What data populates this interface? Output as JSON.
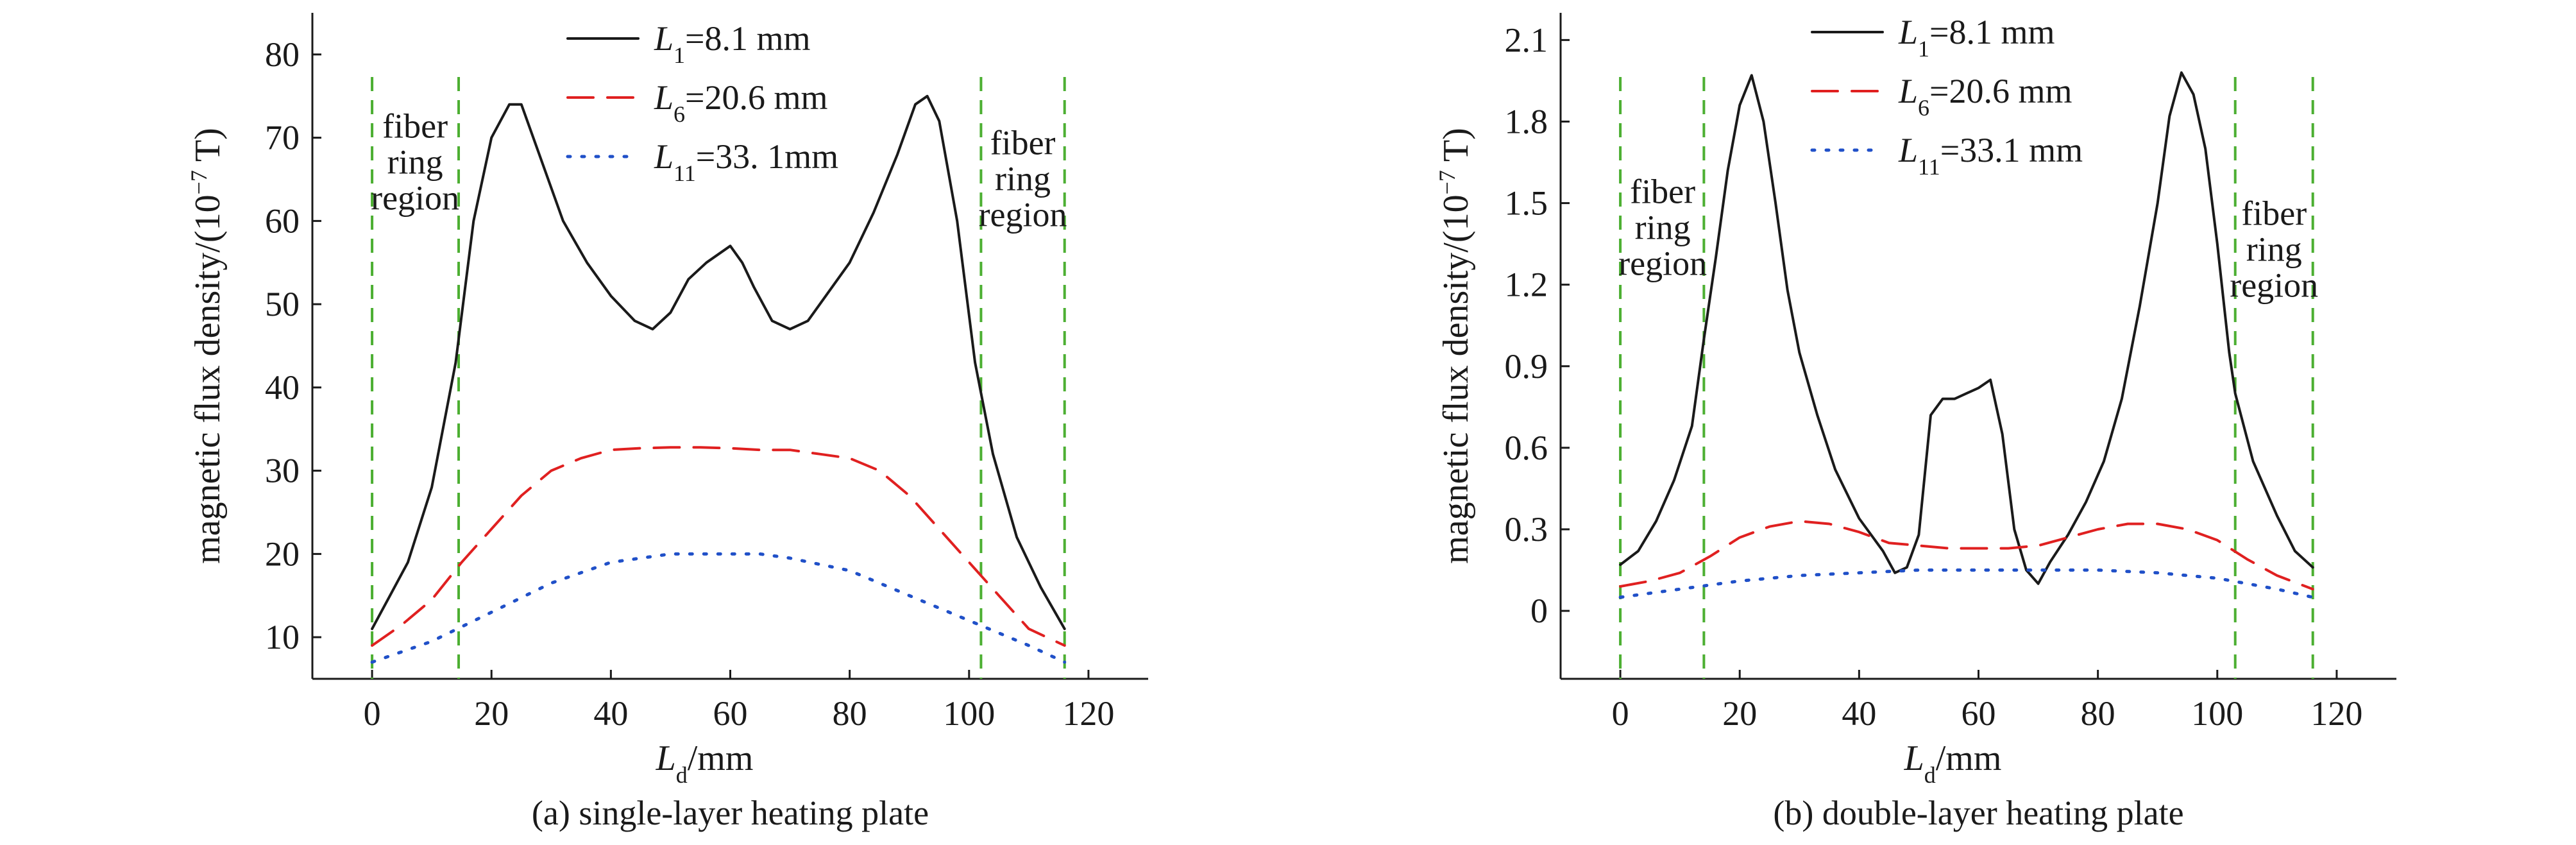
{
  "chart_data": [
    {
      "type": "line",
      "caption": "(a) single-layer heating plate",
      "xlabel": {
        "main": "L",
        "sub": "d",
        "rest": "/mm"
      },
      "ylabel": {
        "main": "magnetic flux density/(10",
        "sup": "−7",
        "rest": " T)"
      },
      "xlim": [
        -10,
        130
      ],
      "ylim": [
        5,
        85
      ],
      "xticks": [
        0,
        20,
        40,
        60,
        80,
        100,
        120
      ],
      "yticks": [
        10,
        20,
        30,
        40,
        50,
        60,
        70,
        80
      ],
      "region_lines": [
        0,
        14.5,
        102,
        116
      ],
      "region_labels": [
        {
          "text": [
            "fiber",
            "ring",
            "region"
          ],
          "x": 7.2,
          "y": 70
        },
        {
          "text": [
            "fiber",
            "ring",
            "region"
          ],
          "x": 109,
          "y": 68
        }
      ],
      "series": [
        {
          "name": {
            "main": "L",
            "sub": "1",
            "rest": "=8.1 mm"
          },
          "color": "#1a1a1a",
          "style": "solid",
          "x": [
            0,
            3,
            6,
            10,
            14,
            17,
            20,
            23,
            25,
            28,
            32,
            36,
            40,
            44,
            47,
            50,
            53,
            56,
            58,
            60,
            62,
            64,
            67,
            70,
            73,
            76,
            80,
            84,
            88,
            91,
            93,
            95,
            98,
            101,
            104,
            108,
            112,
            116
          ],
          "y": [
            11,
            15,
            19,
            28,
            43,
            60,
            70,
            74,
            74,
            68,
            60,
            55,
            51,
            48,
            47,
            49,
            53,
            55,
            56,
            57,
            55,
            52,
            48,
            47,
            48,
            51,
            55,
            61,
            68,
            74,
            75,
            72,
            60,
            43,
            32,
            22,
            16,
            11
          ]
        },
        {
          "name": {
            "main": "L",
            "sub": "6",
            "rest": "=20.6 mm"
          },
          "color": "#e02020",
          "style": "dashed",
          "x": [
            0,
            5,
            10,
            15,
            20,
            25,
            30,
            35,
            40,
            45,
            50,
            55,
            60,
            65,
            70,
            75,
            80,
            85,
            90,
            95,
            100,
            105,
            110,
            116
          ],
          "y": [
            9,
            11.5,
            14.5,
            19,
            23,
            27,
            30,
            31.5,
            32.5,
            32.7,
            32.8,
            32.8,
            32.7,
            32.5,
            32.5,
            32,
            31.5,
            30,
            27,
            23,
            19,
            15,
            11,
            9
          ]
        },
        {
          "name": {
            "main": "L",
            "sub": "11",
            "rest": "=33. 1mm"
          },
          "color": "#2050c8",
          "style": "dotted",
          "x": [
            0,
            10,
            20,
            30,
            40,
            50,
            55,
            60,
            65,
            70,
            80,
            90,
            100,
            110,
            116
          ],
          "y": [
            7,
            9.5,
            13,
            16.5,
            19,
            20,
            20,
            20,
            20,
            19.5,
            18,
            15,
            12,
            9,
            7
          ]
        }
      ]
    },
    {
      "type": "line",
      "caption": "(b) double-layer heating plate",
      "xlabel": {
        "main": "L",
        "sub": "d",
        "rest": "/mm"
      },
      "ylabel": {
        "main": "magnetic flux density/(10",
        "sup": "−7",
        "rest": " T)"
      },
      "xlim": [
        -10,
        130
      ],
      "ylim": [
        -0.25,
        2.2
      ],
      "xticks": [
        0,
        20,
        40,
        60,
        80,
        100,
        120
      ],
      "yticks": [
        0,
        0.3,
        0.6,
        0.9,
        1.2,
        1.5,
        1.8,
        2.1
      ],
      "ytick_labels": [
        "0",
        "0.3",
        "0.6",
        "0.9",
        "1.2",
        "1.5",
        "1.8",
        "2.1"
      ],
      "region_lines": [
        0,
        14,
        103,
        116
      ],
      "region_labels": [
        {
          "text": [
            "fiber",
            "ring",
            "region"
          ],
          "x": 7.1,
          "y": 1.5
        },
        {
          "text": [
            "fiber",
            "ring",
            "region"
          ],
          "x": 109.5,
          "y": 1.42
        }
      ],
      "series": [
        {
          "name": {
            "main": "L",
            "sub": "1",
            "rest": "=8.1 mm"
          },
          "color": "#1a1a1a",
          "style": "solid",
          "x": [
            0,
            3,
            6,
            9,
            12,
            14,
            16,
            18,
            20,
            22,
            24,
            26,
            28,
            30,
            33,
            36,
            40,
            44,
            46,
            48,
            50,
            52,
            54,
            56,
            58,
            60,
            62,
            64,
            66,
            68,
            70,
            72,
            75,
            78,
            81,
            84,
            87,
            90,
            92,
            94,
            96,
            98,
            100,
            102,
            103,
            106,
            110,
            113,
            116
          ],
          "y": [
            0.17,
            0.22,
            0.33,
            0.48,
            0.68,
            1.0,
            1.3,
            1.62,
            1.86,
            1.97,
            1.8,
            1.5,
            1.18,
            0.95,
            0.72,
            0.52,
            0.34,
            0.22,
            0.14,
            0.16,
            0.28,
            0.72,
            0.78,
            0.78,
            0.8,
            0.82,
            0.85,
            0.65,
            0.3,
            0.15,
            0.1,
            0.18,
            0.28,
            0.4,
            0.55,
            0.78,
            1.12,
            1.5,
            1.82,
            1.98,
            1.9,
            1.7,
            1.35,
            0.95,
            0.8,
            0.55,
            0.35,
            0.22,
            0.16
          ]
        },
        {
          "name": {
            "main": "L",
            "sub": "6",
            "rest": "=20.6 mm"
          },
          "color": "#e02020",
          "style": "dashed",
          "x": [
            0,
            5,
            10,
            15,
            20,
            25,
            30,
            35,
            40,
            45,
            50,
            55,
            60,
            65,
            70,
            75,
            80,
            85,
            90,
            95,
            100,
            105,
            110,
            116
          ],
          "y": [
            0.09,
            0.11,
            0.14,
            0.2,
            0.27,
            0.31,
            0.33,
            0.32,
            0.29,
            0.25,
            0.24,
            0.23,
            0.23,
            0.23,
            0.24,
            0.27,
            0.3,
            0.32,
            0.32,
            0.3,
            0.26,
            0.19,
            0.13,
            0.08
          ]
        },
        {
          "name": {
            "main": "L",
            "sub": "11",
            "rest": "=33.1 mm"
          },
          "color": "#2050c8",
          "style": "dotted",
          "x": [
            0,
            10,
            20,
            30,
            40,
            50,
            60,
            70,
            80,
            90,
            100,
            110,
            116
          ],
          "y": [
            0.05,
            0.08,
            0.11,
            0.13,
            0.14,
            0.15,
            0.15,
            0.15,
            0.15,
            0.14,
            0.12,
            0.08,
            0.05
          ]
        }
      ]
    }
  ]
}
